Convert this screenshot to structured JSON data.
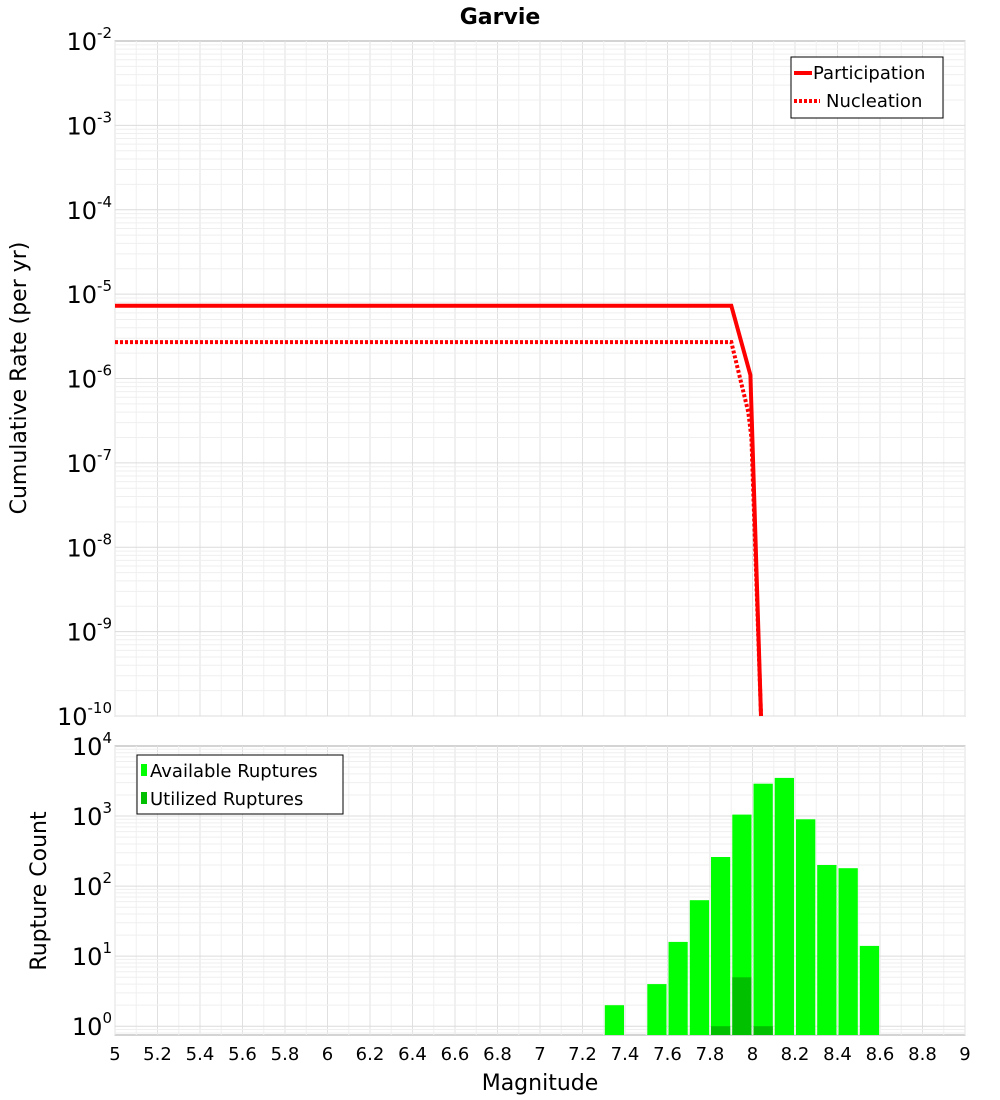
{
  "chart_data": [
    {
      "type": "line",
      "title": "Garvie",
      "xlabel": "",
      "ylabel": "Cumulative Rate (per yr)",
      "yscale": "log",
      "xlim": [
        5,
        9
      ],
      "ylim": [
        1e-10,
        0.01
      ],
      "y_tick_exponents": [
        -2,
        -3,
        -4,
        -5,
        -6,
        -7,
        -8,
        -9,
        -10
      ],
      "tick_base": "10",
      "legend_position": "top-right",
      "series": [
        {
          "name": "Participation",
          "style": "solid",
          "color": "#ff0000",
          "points": [
            [
              5.0,
              7.3e-06
            ],
            [
              7.9,
              7.3e-06
            ],
            [
              7.99,
              1.1e-06
            ],
            [
              8.04,
              1e-10
            ]
          ]
        },
        {
          "name": "Nucleation",
          "style": "dotted",
          "color": "#ff0000",
          "points": [
            [
              5.0,
              2.7e-06
            ],
            [
              7.9,
              2.7e-06
            ],
            [
              7.98,
              4e-07
            ],
            [
              7.995,
              2e-07
            ],
            [
              8.04,
              1e-10
            ]
          ]
        }
      ]
    },
    {
      "type": "bar",
      "xlabel": "Magnitude",
      "ylabel": "Rupture Count",
      "yscale": "log",
      "xlim": [
        5,
        9
      ],
      "ylim": [
        0.75,
        10000
      ],
      "y_tick_exponents": [
        4,
        3,
        2,
        1,
        0
      ],
      "tick_base": "10",
      "x_ticks": [
        "5",
        "5.2",
        "5.4",
        "5.6",
        "5.8",
        "6",
        "6.2",
        "6.4",
        "6.6",
        "6.8",
        "7",
        "7.2",
        "7.4",
        "7.6",
        "7.8",
        "8",
        "8.2",
        "8.4",
        "8.6",
        "8.8",
        "9"
      ],
      "bin_width": 0.1,
      "legend_position": "top-left",
      "series": [
        {
          "name": "Available Ruptures",
          "color": "#00ff00",
          "x": [
            7.35,
            7.55,
            7.65,
            7.75,
            7.85,
            7.95,
            8.05,
            8.15,
            8.25,
            8.35,
            8.45,
            8.55
          ],
          "values": [
            2,
            4,
            16,
            63,
            260,
            1050,
            2900,
            3500,
            900,
            200,
            180,
            14
          ]
        },
        {
          "name": "Utilized Ruptures",
          "color": "#00c000",
          "x": [
            7.85,
            7.95,
            8.05
          ],
          "values": [
            1,
            5,
            1
          ]
        }
      ]
    }
  ]
}
